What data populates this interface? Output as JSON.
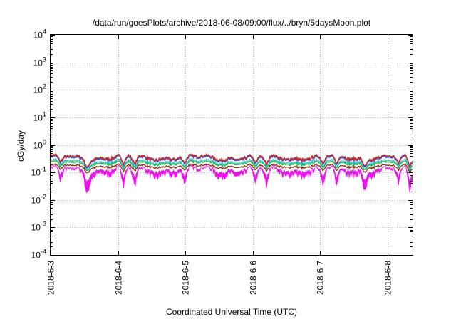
{
  "chart_data": {
    "type": "line",
    "title": "/data/run/goesPlots/archive/2018-06-08/09:00/flux/../bryn/5daysMoon.plot",
    "xlabel": "Coordinated Universal Time (UTC)",
    "ylabel": "cGy/day",
    "y_scale": "log",
    "ylim": [
      0.0001,
      10000
    ],
    "y_ticks": [
      {
        "value": 0.0001,
        "base": "10",
        "exp": "-4"
      },
      {
        "value": 0.001,
        "base": "10",
        "exp": "-3"
      },
      {
        "value": 0.01,
        "base": "10",
        "exp": "-2"
      },
      {
        "value": 0.1,
        "base": "10",
        "exp": "-1"
      },
      {
        "value": 1,
        "base": "10",
        "exp": "0"
      },
      {
        "value": 10,
        "base": "10",
        "exp": "1"
      },
      {
        "value": 100,
        "base": "10",
        "exp": "2"
      },
      {
        "value": 1000,
        "base": "10",
        "exp": "3"
      },
      {
        "value": 10000,
        "base": "10",
        "exp": "4"
      }
    ],
    "x_range": [
      "2018-06-03T00:00",
      "2018-06-08T09:00"
    ],
    "x_ticks": [
      "2018-6-3",
      "2018-6-4",
      "2018-6-5",
      "2018-6-6",
      "2018-6-7",
      "2018-6-8"
    ],
    "grid": true,
    "colors": {
      "red": "#e0201b",
      "blue": "#1f5fe8",
      "cyan": "#18c8c8",
      "green": "#28b428",
      "darkred": "#a01818",
      "magenta": "#ee10ee"
    },
    "series_levels": {
      "red": 0.36,
      "blue": 0.32,
      "cyan": 0.25,
      "green": 0.22,
      "darkred": 0.17,
      "magenta": 0.13
    },
    "dips": [
      {
        "time": "2018-06-03T03:30",
        "depth": 0.45
      },
      {
        "time": "2018-06-03T13:00",
        "depth": 0.5
      },
      {
        "time": "2018-06-04T02:00",
        "depth": 0.55
      },
      {
        "time": "2018-06-04T06:00",
        "depth": 0.5
      },
      {
        "time": "2018-06-04T23:50",
        "depth": 0.5
      },
      {
        "time": "2018-06-06T01:00",
        "depth": 0.5
      },
      {
        "time": "2018-06-06T05:00",
        "depth": 0.55
      },
      {
        "time": "2018-06-07T01:00",
        "depth": 0.45
      },
      {
        "time": "2018-06-07T06:00",
        "depth": 0.55
      },
      {
        "time": "2018-06-07T16:00",
        "depth": 0.5
      },
      {
        "time": "2018-06-08T04:00",
        "depth": 0.5
      },
      {
        "time": "2018-06-08T08:00",
        "depth": 0.55
      }
    ]
  }
}
